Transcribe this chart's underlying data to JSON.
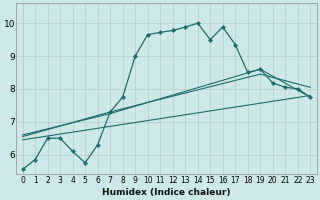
{
  "xlabel": "Humidex (Indice chaleur)",
  "bg_color": "#cde8e8",
  "grid_color": "#c0d8d8",
  "line_color": "#1a6b6b",
  "xlim": [
    -0.5,
    23.5
  ],
  "ylim": [
    5.4,
    10.6
  ],
  "xticks": [
    0,
    1,
    2,
    3,
    4,
    5,
    6,
    7,
    8,
    9,
    10,
    11,
    12,
    13,
    14,
    15,
    16,
    17,
    18,
    19,
    20,
    21,
    22,
    23
  ],
  "yticks": [
    6,
    7,
    8,
    9,
    10
  ],
  "series1_x": [
    0,
    1,
    2,
    3,
    4,
    5,
    6,
    7,
    8,
    9,
    10,
    11,
    12,
    13,
    14,
    15,
    16,
    17,
    18,
    19,
    20,
    21,
    22,
    23
  ],
  "series1_y": [
    5.55,
    5.85,
    6.5,
    6.5,
    6.1,
    5.75,
    6.3,
    7.3,
    7.75,
    9.0,
    9.65,
    9.72,
    9.78,
    9.88,
    10.0,
    9.5,
    9.88,
    9.35,
    8.5,
    8.6,
    8.18,
    8.05,
    8.0,
    7.75
  ],
  "series2_x": [
    0,
    7,
    19,
    23
  ],
  "series2_y": [
    6.6,
    7.25,
    8.6,
    7.75
  ],
  "series3_x": [
    0,
    7,
    19,
    23
  ],
  "series3_y": [
    6.55,
    7.3,
    8.45,
    8.05
  ],
  "series4_x": [
    0,
    23
  ],
  "series4_y": [
    6.45,
    7.8
  ]
}
